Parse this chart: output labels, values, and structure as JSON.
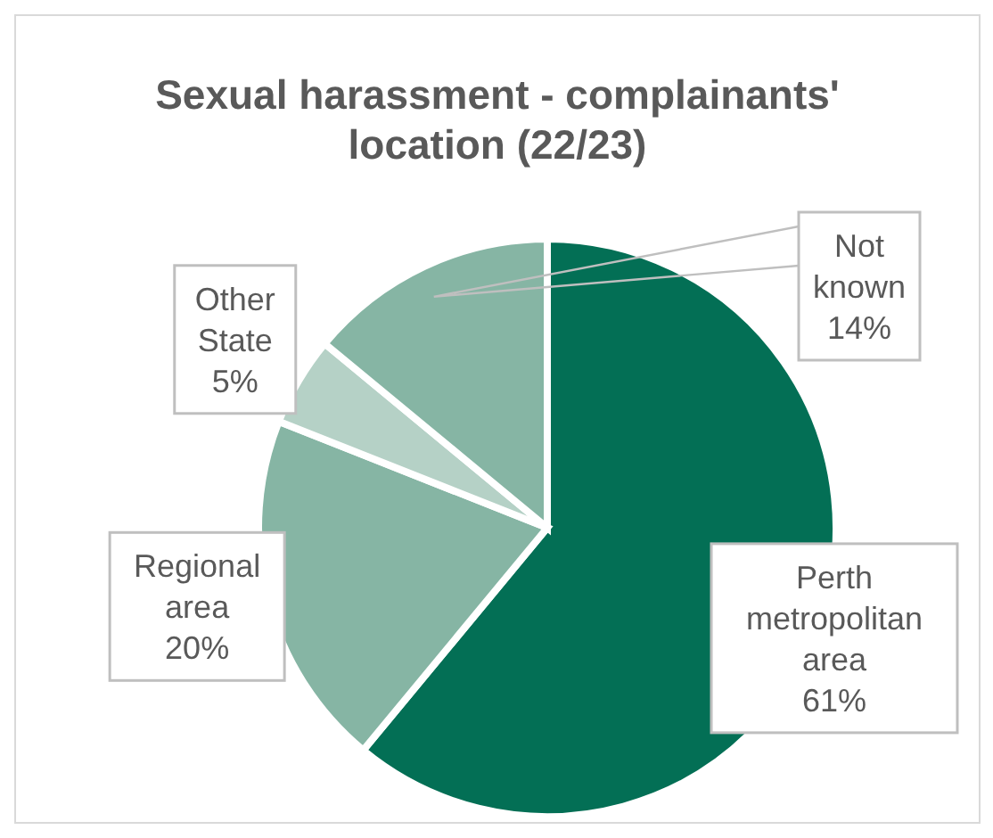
{
  "chart_data": {
    "type": "pie",
    "title": "Sexual harassment - complainants' location (22/23)",
    "categories": [
      "Perth metropolitan area",
      "Regional area",
      "Other State",
      "Not known"
    ],
    "values": [
      61,
      20,
      5,
      14
    ],
    "colors": [
      "#036f55",
      "#86b5a4",
      "#b5d1c6",
      "#86b5a4"
    ],
    "value_labels": [
      "61%",
      "20%",
      "5%",
      "14%"
    ]
  }
}
